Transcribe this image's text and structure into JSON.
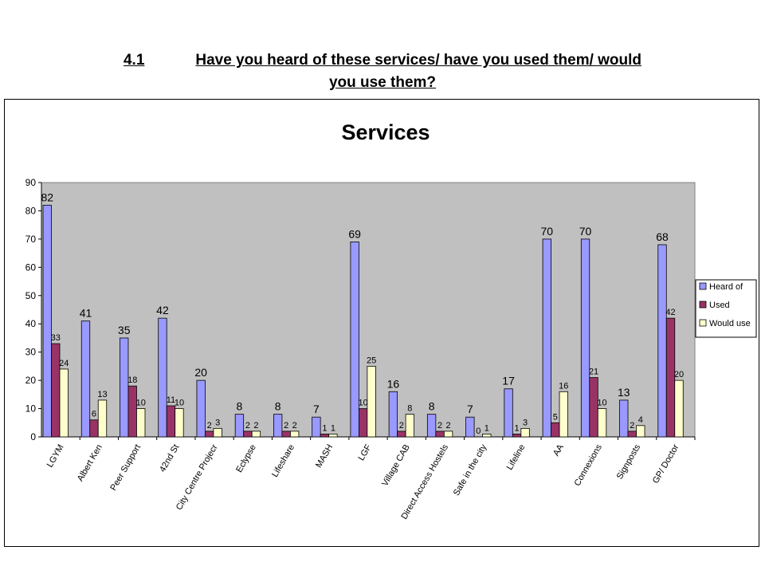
{
  "heading": {
    "number": "4.1",
    "line1": "Have you heard of these services/ have you used them/ would",
    "line2": "you use them?"
  },
  "chart_data": {
    "type": "bar",
    "title": "Services",
    "xlabel": "",
    "ylabel": "",
    "ylim": [
      0,
      90
    ],
    "yticks": [
      0,
      10,
      20,
      30,
      40,
      50,
      60,
      70,
      80,
      90
    ],
    "grid": false,
    "legend_position": "right",
    "categories": [
      "LGYM",
      "Albert Ken",
      "Peer Support",
      "42nd St",
      "City Centre Projecr",
      "Eclypse",
      "Lifeshare",
      "MASH",
      "LGF",
      "Village CAB",
      "Direct Access Hostels",
      "Safe in the city",
      "Lifeline",
      "AA",
      "Connexions",
      "Signposts",
      "GP/ Doctor"
    ],
    "series": [
      {
        "name": "Heard of",
        "color": "#9999ff",
        "values": [
          82,
          41,
          35,
          42,
          20,
          8,
          8,
          7,
          69,
          16,
          8,
          7,
          17,
          70,
          70,
          13,
          68
        ]
      },
      {
        "name": "Used",
        "color": "#993366",
        "values": [
          33,
          6,
          18,
          11,
          2,
          2,
          2,
          1,
          10,
          2,
          2,
          0,
          1,
          5,
          21,
          2,
          42
        ]
      },
      {
        "name": "Would use",
        "color": "#ffffcc",
        "values": [
          24,
          13,
          10,
          10,
          3,
          2,
          2,
          1,
          25,
          8,
          2,
          1,
          3,
          16,
          10,
          4,
          20
        ]
      }
    ],
    "plot_background": "#c0c0c0"
  }
}
